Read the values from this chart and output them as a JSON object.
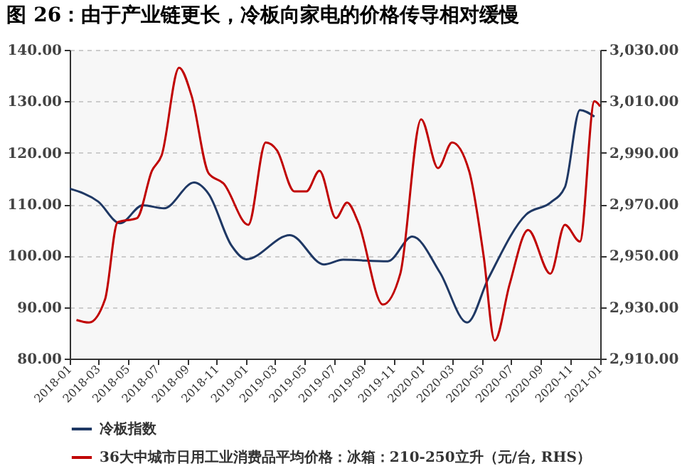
{
  "chart_data": {
    "type": "line",
    "title": "图 26：由于产业链更长，冷板向家电的价格传导相对缓慢",
    "series": [
      {
        "name": "冷板指数",
        "color": "#1f3864",
        "x": [
          "2018-01",
          "2018-03",
          "2018-04-15",
          "2018-06",
          "2018-07-15",
          "2018-09-15",
          "2018-10-15",
          "2018-12",
          "2019-01",
          "2019-04",
          "2019-06-10",
          "2019-07-20",
          "2019-10-20",
          "2019-12-10",
          "2020-02-05",
          "2020-04",
          "2020-05-15",
          "2020-08",
          "2020-09-20",
          "2020-10-20",
          "2020-11-20",
          "2020-12-20"
        ],
        "values": [
          113,
          110.5,
          106.3,
          109.8,
          109.2,
          114.2,
          112,
          102,
          99.3,
          104,
          98.3,
          99.2,
          98.9,
          103.7,
          96.7,
          87,
          95.6,
          108,
          110.3,
          113.3,
          128.3,
          127
        ]
      },
      {
        "name": "36大中城市日用工业消费品平均价格：冰箱：210-250立升（元/台, RHS）",
        "color": "#c00000",
        "axis": "y2",
        "x": [
          "2018-01-15",
          "2018-02-10",
          "2018-03-15",
          "2018-04-10",
          "2018-05-20",
          "2018-06-20",
          "2018-07-10",
          "2018-08-15",
          "2018-09-10",
          "2018-10-15",
          "2018-11-15",
          "2019-01-05",
          "2019-02-10",
          "2019-03-05",
          "2019-04-10",
          "2019-05-05",
          "2019-06-01",
          "2019-07-05",
          "2019-07-28",
          "2019-08-20",
          "2019-10-10",
          "2019-11-15",
          "2019-12-28",
          "2020-02-01",
          "2020-03-01",
          "2020-04-05",
          "2020-05-05",
          "2020-05-28",
          "2020-06-28",
          "2020-08-05",
          "2020-09-20",
          "2020-10-20",
          "2020-11-20",
          "2020-12-20",
          "2021-01"
        ],
        "values": [
          2925,
          2924,
          2933,
          2963,
          2964.6,
          2983,
          2989,
          3023,
          3012,
          2982,
          2978,
          2962,
          2994,
          2991,
          2975,
          2975,
          2983,
          2964.6,
          2970.6,
          2963,
          2931,
          2943,
          3003,
          2984,
          2994,
          2983,
          2950,
          2917,
          2939,
          2960,
          2943,
          2962,
          2955.5,
          3010,
          3008
        ]
      }
    ],
    "xlim": [
      "2018-01",
      "2021-01"
    ],
    "xticks": [
      "2018-01",
      "2018-03",
      "2018-05",
      "2018-07",
      "2018-09",
      "2018-11",
      "2019-01",
      "2019-03",
      "2019-05",
      "2019-07",
      "2019-09",
      "2019-11",
      "2020-01",
      "2020-03",
      "2020-05",
      "2020-07",
      "2020-09",
      "2020-11",
      "2021-01"
    ],
    "ylim": [
      80,
      140
    ],
    "yticks": [
      {
        "value": 80,
        "label": "80.00"
      },
      {
        "value": 90,
        "label": "90.00"
      },
      {
        "value": 100,
        "label": "100.00"
      },
      {
        "value": 110,
        "label": "110.00"
      },
      {
        "value": 120,
        "label": "120.00"
      },
      {
        "value": 130,
        "label": "130.00"
      },
      {
        "value": 140,
        "label": "140.00"
      }
    ],
    "y2lim": [
      2910,
      3030
    ],
    "y2ticks": [
      {
        "value": 2910,
        "label": "2,910.00"
      },
      {
        "value": 2930,
        "label": "2,930.00"
      },
      {
        "value": 2950,
        "label": "2,950.00"
      },
      {
        "value": 2970,
        "label": "2,970.00"
      },
      {
        "value": 2990,
        "label": "2,990.00"
      },
      {
        "value": 3010,
        "label": "3,010.00"
      },
      {
        "value": 3030,
        "label": "3,030.00"
      }
    ],
    "grid": "y",
    "legend": "bottom"
  }
}
